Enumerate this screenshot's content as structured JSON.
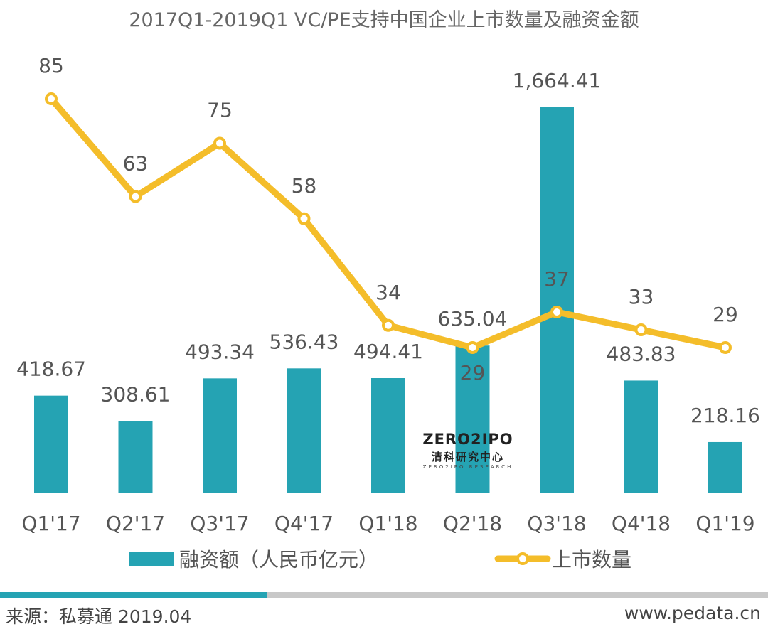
{
  "chart_data": {
    "type": "bar",
    "title": "2017Q1-2019Q1 VC/PE支持中国企业上市数量及融资金额",
    "categories": [
      "Q1'17",
      "Q2'17",
      "Q3'17",
      "Q4'17",
      "Q1'18",
      "Q2'18",
      "Q3'18",
      "Q4'18",
      "Q1'19"
    ],
    "series": [
      {
        "name": "融资额（人民币亿元）",
        "type": "bar",
        "values": [
          418.67,
          308.61,
          493.34,
          536.43,
          494.41,
          635.04,
          1664.41,
          483.83,
          218.16
        ],
        "labels": [
          "418.67",
          "308.61",
          "493.34",
          "536.43",
          "494.41",
          "635.04",
          "1,664.41",
          "483.83",
          "218.16"
        ]
      },
      {
        "name": "上市数量",
        "type": "line",
        "values": [
          85,
          63,
          75,
          58,
          34,
          29,
          37,
          33,
          29
        ],
        "labels": [
          "85",
          "63",
          "75",
          "58",
          "34",
          "29",
          "37",
          "33",
          "29"
        ]
      }
    ],
    "legend_position": "bottom",
    "grid": false,
    "colors": {
      "bar": "#25a3b3",
      "line": "#f4bd2a",
      "marker_fill": "#ffffff"
    }
  },
  "watermark": {
    "en": "ZERO2IPO",
    "cn": "清科研究中心",
    "sub": "ZERO2IPO RESEARCH"
  },
  "progress": {
    "fraction": 0.347
  },
  "footer": {
    "source": "来源：私募通 2019.04",
    "url": "www.pedata.cn"
  }
}
